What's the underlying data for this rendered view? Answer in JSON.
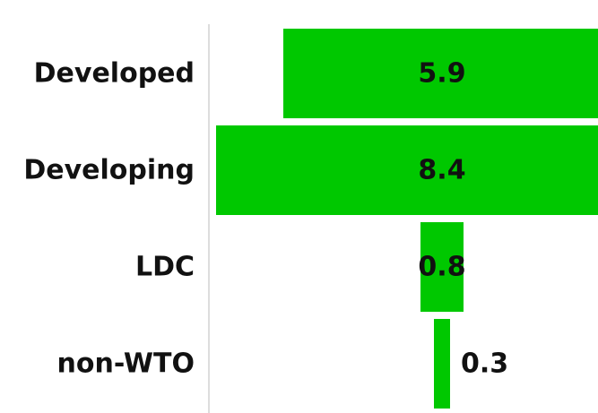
{
  "chart_data": {
    "type": "funnel",
    "categories": [
      "Developed",
      "Developing",
      "LDC",
      "non-WTO"
    ],
    "values": [
      5.9,
      8.4,
      0.8,
      0.3
    ],
    "color": "#00c800"
  }
}
